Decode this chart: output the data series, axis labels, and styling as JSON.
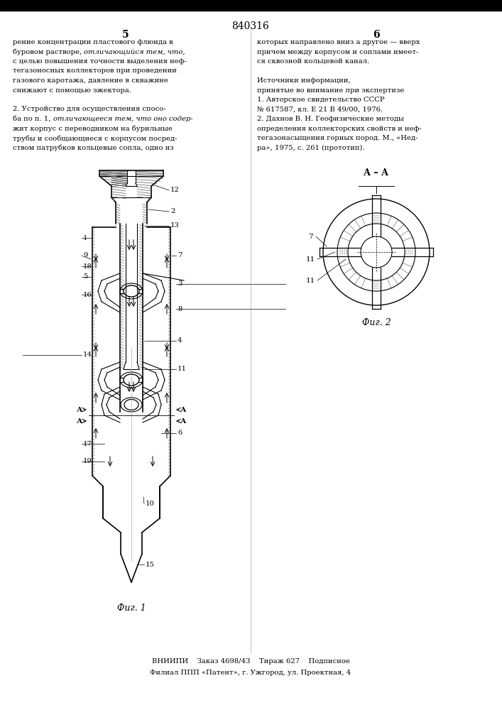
{
  "patent_number": "840316",
  "page_left": "5",
  "page_right": "6",
  "text_left": [
    "рение концентрации пластового флюида в",
    "буровом растворе, #отличающийся тем, что,#",
    "с целью повышения точности выделения неф-",
    "тегазоносных коллекторов при проведении",
    "газового каротажа, давление в скважине",
    "снижают с помощью эжектора.",
    "",
    "2. Устройство для осуществления спосо-",
    "ба по п. 1, #отличающееся тем, что оно содер-#",
    "жит корпус с переводником на бурильные",
    "трубы и сообщающиеся с корпусом посред-",
    "ством патрубков кольцевые сопла, одно из"
  ],
  "text_right": [
    "которых направлено вниз а другое — вверх",
    "причем между корпусом и соплами имеет-",
    "ся сквозной кольцевой канал.",
    "",
    "Источники информации,",
    "принятые во внимание при экспертизе",
    "1. Авторское свидетельство СССР",
    "№ 617587, кл. Е 21 В 49/00, 1976.",
    "2. Дахнов В. Н. Геофизические методы",
    "определения коллекторских свойств и неф-",
    "тегазонасыщения горных пород. М., «Нед-",
    "ра», 1975, с. 261 (прототип)."
  ],
  "fig1_label": "Фиг. 1",
  "fig2_label": "Фиг. 2",
  "fig2_section": "А – А",
  "footer_line1": "ВНИИПИ    Заказ 4698/43    Тираж 627    Подписное",
  "footer_line2": "Филиал ППП «Патент», г. Ужгород, ул. Проектная, 4",
  "bg_color": "#ffffff",
  "line_color": "#000000",
  "text_color": "#000000"
}
